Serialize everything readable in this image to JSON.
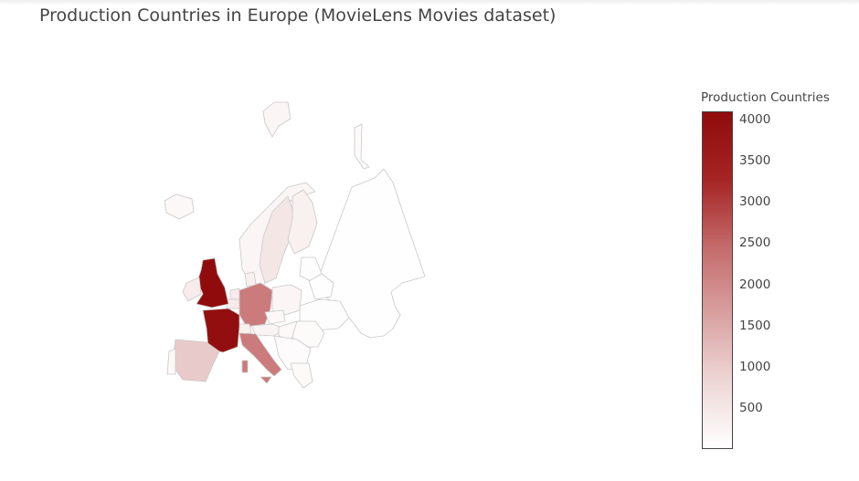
{
  "chart_data": {
    "type": "choropleth",
    "title": "Production Countries in Europe (MovieLens Movies dataset)",
    "scope": "europe",
    "colorbar": {
      "title": "Production Countries",
      "min": 0,
      "max": 4100,
      "ticks": [
        4000,
        3500,
        3000,
        2500,
        2000,
        1500,
        1000,
        500
      ],
      "colors": [
        "#ffffff",
        "#eed6d6",
        "#d9a0a0",
        "#c46a6a",
        "#a62424",
        "#900c0c"
      ]
    },
    "regions": [
      {
        "country": "United Kingdom",
        "value": 4100
      },
      {
        "country": "France",
        "value": 4000
      },
      {
        "country": "Germany",
        "value": 2200
      },
      {
        "country": "Italy",
        "value": 2200
      },
      {
        "country": "Spain",
        "value": 1000
      },
      {
        "country": "Sweden",
        "value": 500
      },
      {
        "country": "Finland",
        "value": 300
      },
      {
        "country": "Norway",
        "value": 200
      },
      {
        "country": "Iceland",
        "value": 150
      },
      {
        "country": "Ireland",
        "value": 400
      },
      {
        "country": "Belgium",
        "value": 400
      },
      {
        "country": "Netherlands",
        "value": 400
      },
      {
        "country": "Denmark",
        "value": 300
      },
      {
        "country": "Switzerland",
        "value": 300
      },
      {
        "country": "Austria",
        "value": 250
      },
      {
        "country": "Poland",
        "value": 200
      },
      {
        "country": "Czech Republic",
        "value": 150
      },
      {
        "country": "Hungary",
        "value": 150
      },
      {
        "country": "Portugal",
        "value": 150
      },
      {
        "country": "Greece",
        "value": 100
      },
      {
        "country": "Romania",
        "value": 100
      },
      {
        "country": "Balkans",
        "value": 80
      },
      {
        "country": "Baltics",
        "value": 50
      },
      {
        "country": "Ukraine",
        "value": 50
      },
      {
        "country": "Belarus",
        "value": 30
      },
      {
        "country": "Russia",
        "value": 20
      }
    ]
  }
}
